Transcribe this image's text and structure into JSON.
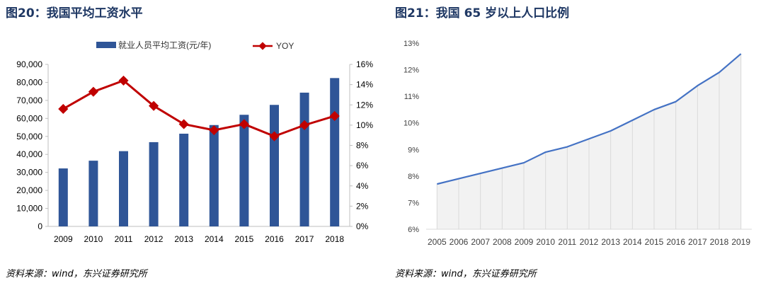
{
  "left": {
    "title": "图20：我国平均工资水平",
    "source": "资料来源：wind，东兴证券研究所",
    "chart_data": {
      "type": "bar",
      "categories": [
        "2009",
        "2010",
        "2011",
        "2012",
        "2013",
        "2014",
        "2015",
        "2016",
        "2017",
        "2018"
      ],
      "series": [
        {
          "name": "就业人员平均工资(元/年)",
          "type": "bar",
          "axis": "left",
          "color": "#2f5597",
          "values": [
            32200,
            36500,
            41800,
            46800,
            51500,
            56300,
            62000,
            67500,
            74300,
            82400
          ]
        },
        {
          "name": "YOY",
          "type": "line",
          "axis": "right",
          "color": "#c00000",
          "values": [
            11.6,
            13.3,
            14.4,
            11.9,
            10.1,
            9.5,
            10.1,
            8.9,
            10.0,
            10.9
          ]
        }
      ],
      "y_left": {
        "min": 0,
        "max": 90000,
        "step": 10000,
        "tick_labels": [
          "0",
          "10,000",
          "20,000",
          "30,000",
          "40,000",
          "50,000",
          "60,000",
          "70,000",
          "80,000",
          "90,000"
        ]
      },
      "y_right": {
        "min": 0,
        "max": 16,
        "step": 2,
        "tick_labels": [
          "0%",
          "2%",
          "4%",
          "6%",
          "8%",
          "10%",
          "12%",
          "14%",
          "16%"
        ]
      },
      "legend_position": "top"
    }
  },
  "right": {
    "title": "图21：我国 65 岁以上人口比例",
    "source": "资料来源：wind，东兴证券研究所",
    "chart_data": {
      "type": "area",
      "categories": [
        "2005",
        "2006",
        "2007",
        "2008",
        "2009",
        "2010",
        "2011",
        "2012",
        "2013",
        "2014",
        "2015",
        "2016",
        "2017",
        "2018",
        "2019"
      ],
      "values": [
        7.7,
        7.9,
        8.1,
        8.3,
        8.5,
        8.9,
        9.1,
        9.4,
        9.7,
        10.1,
        10.5,
        10.8,
        11.4,
        11.9,
        12.6
      ],
      "y": {
        "min": 6,
        "max": 13,
        "step": 1,
        "tick_labels": [
          "6%",
          "7%",
          "8%",
          "9%",
          "10%",
          "11%",
          "12%",
          "13%"
        ]
      },
      "line_color": "#4472c4",
      "fill_color": "#f2f2f2",
      "grid": "vertical"
    }
  }
}
